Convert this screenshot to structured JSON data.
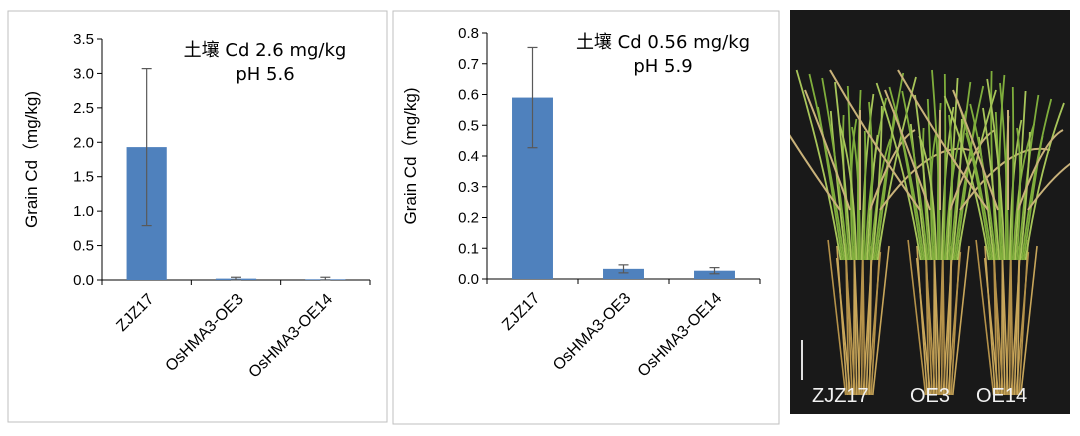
{
  "chart_data": [
    {
      "type": "bar",
      "annotation": [
        "土壤 Cd 2.6 mg/kg",
        "pH 5.6"
      ],
      "ylabel": "Grain Cd（mg/kg)",
      "categories": [
        "ZJZ17",
        "OsHMA3-OE3",
        "OsHMA3-OE14"
      ],
      "values": [
        1.93,
        0.02,
        0.01
      ],
      "errors": [
        1.14,
        0.02,
        0.03
      ],
      "ylim": [
        0,
        3.5
      ],
      "ytick_labels": [
        "0.0",
        "0.5",
        "1.0",
        "1.5",
        "2.0",
        "2.5",
        "3.0",
        "3.5"
      ],
      "bar_color": "#4f81bd",
      "grid": false
    },
    {
      "type": "bar",
      "annotation": [
        "土壤 Cd 0.56 mg/kg",
        "pH 5.9"
      ],
      "ylabel": "Grain Cd（mg/kg)",
      "categories": [
        "ZJZ17",
        "OsHMA3-OE3",
        "OsHMA3-OE14"
      ],
      "values": [
        0.59,
        0.033,
        0.027
      ],
      "errors": [
        0.163,
        0.013,
        0.01
      ],
      "ylim": [
        0,
        0.8
      ],
      "ytick_labels": [
        "0.0",
        "0.1",
        "0.2",
        "0.3",
        "0.4",
        "0.5",
        "0.6",
        "0.7",
        "0.8"
      ],
      "bar_color": "#4f81bd",
      "grid": false
    }
  ],
  "photo": {
    "labels": [
      "ZJZ17",
      "OE3",
      "OE14"
    ]
  }
}
